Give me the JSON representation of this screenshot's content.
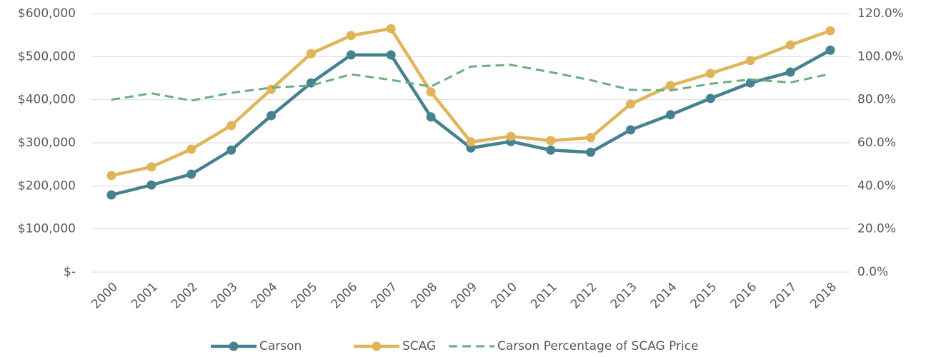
{
  "chart_data": {
    "type": "line",
    "categories": [
      "2000",
      "2001",
      "2002",
      "2003",
      "2004",
      "2005",
      "2006",
      "2007",
      "2008",
      "2009",
      "2010",
      "2011",
      "2012",
      "2013",
      "2014",
      "2015",
      "2016",
      "2017",
      "2018"
    ],
    "series": [
      {
        "name": "Carson",
        "color": "#46818f",
        "values": [
          179000,
          202000,
          227000,
          283000,
          363000,
          439000,
          504000,
          504000,
          360000,
          288000,
          303000,
          283000,
          278000,
          330000,
          365000,
          403000,
          439000,
          464000,
          515000
        ]
      },
      {
        "name": "SCAG",
        "color": "#e0b55a",
        "values": [
          224000,
          244000,
          285000,
          340000,
          424000,
          507000,
          549000,
          565000,
          418000,
          302000,
          315000,
          305000,
          312000,
          390000,
          433000,
          461000,
          491000,
          527000,
          560000
        ]
      },
      {
        "name": "Carson Percentage of SCAG Price",
        "color": "#6aae7f",
        "dashed": true,
        "axis": "y2",
        "values": [
          80,
          83,
          79.6,
          83.2,
          85.6,
          86.6,
          91.8,
          89.2,
          86.1,
          95.4,
          96.2,
          92.8,
          89.1,
          84.6,
          84.3,
          87.4,
          89.4,
          88,
          92
        ]
      }
    ],
    "ylim": [
      0,
      600000
    ],
    "yticks": [
      {
        "value": 0,
        "label": "$-"
      },
      {
        "value": 100000,
        "label": "$100,000"
      },
      {
        "value": 200000,
        "label": "$200,000"
      },
      {
        "value": 300000,
        "label": "$300,000"
      },
      {
        "value": 400000,
        "label": "$400,000"
      },
      {
        "value": 500000,
        "label": "$500,000"
      },
      {
        "value": 600000,
        "label": "$600,000"
      }
    ],
    "y2lim": [
      0,
      120
    ],
    "y2ticks": [
      {
        "value": 0,
        "label": "0.0%"
      },
      {
        "value": 20,
        "label": "20.0%"
      },
      {
        "value": 40,
        "label": "40.0%"
      },
      {
        "value": 60,
        "label": "60.0%"
      },
      {
        "value": 80,
        "label": "80.0%"
      },
      {
        "value": 100,
        "label": "100.0%"
      },
      {
        "value": 120,
        "label": "120.0%"
      }
    ],
    "grid": true,
    "legend": "bottom"
  }
}
